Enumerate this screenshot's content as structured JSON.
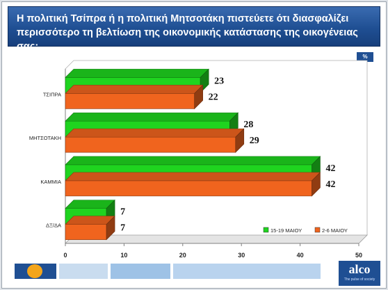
{
  "title": "Η πολιτική Τσίπρα ή η πολιτική Μητσοτάκη πιστεύετε ότι διασφαλίζει περισσότερο τη βελτίωση της οικονομικής κατάστασης της οικογένειας σας;",
  "unit_badge": "%",
  "logo": {
    "name": "alco",
    "tagline": "The pulse of society"
  },
  "chart_data": {
    "type": "bar",
    "orientation": "horizontal",
    "style": "3d",
    "categories": [
      "ΤΣΙΠΡΑ",
      "ΜΗΤΣΟΤΑΚΗ",
      "ΚΑΜΜΙΑ",
      "ΔΞ/ΔΑ"
    ],
    "series": [
      {
        "name": "15-19 ΜΑΙΟΥ",
        "color": "#1fd41f",
        "values": [
          23,
          28,
          42,
          7
        ]
      },
      {
        "name": "2-6 ΜΑΙΟΥ",
        "color": "#f0641e",
        "values": [
          22,
          29,
          42,
          7
        ]
      }
    ],
    "xlim": [
      0,
      50
    ],
    "xticks": [
      "0",
      "10",
      "20",
      "30",
      "40",
      "50"
    ],
    "grid": false,
    "legend_position": "bottom-right"
  }
}
